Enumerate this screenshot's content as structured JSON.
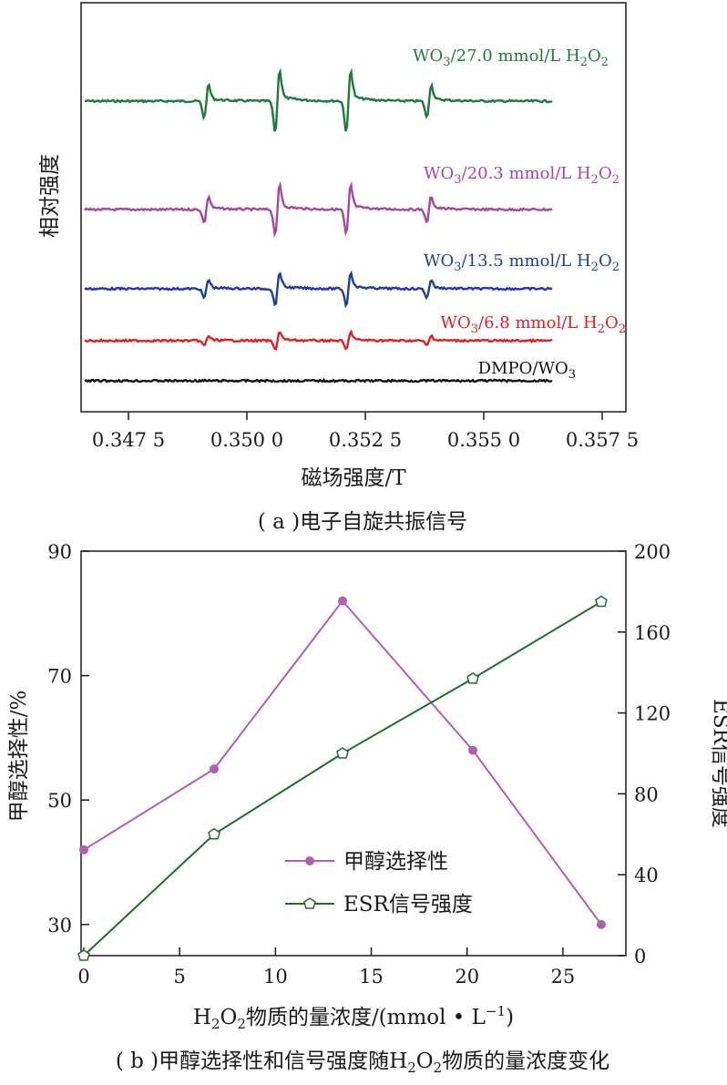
{
  "panel_a": {
    "caption": "( a )电子自旋共振信号",
    "chart_data": {
      "type": "line",
      "xlabel": "磁场强度/T",
      "ylabel": "相对强度",
      "xlim": [
        0.3465,
        0.358
      ],
      "x_ticks": [
        0.3475,
        0.35,
        0.3525,
        0.355,
        0.3575
      ],
      "x_tick_labels": [
        "0.347 5",
        "0.350 0",
        "0.352 5",
        "0.355 0",
        "0.357 5"
      ],
      "grid": false,
      "dmpo_oh_peak_positions": [
        0.3492,
        0.3507,
        0.3522,
        0.3539
      ],
      "series": [
        {
          "name": "WO₃/27.0 mmol/L H₂O₂",
          "color": "#1e7a3a",
          "amplitudes": [
            1.0,
            1.9,
            1.9,
            1.0
          ]
        },
        {
          "name": "WO₃/20.3 mmol/L H₂O₂",
          "color": "#a6479e",
          "amplitudes": [
            0.8,
            1.5,
            1.5,
            0.8
          ]
        },
        {
          "name": "WO₃/13.5 mmol/L H₂O₂",
          "color": "#1f3d9c",
          "amplitudes": [
            0.55,
            1.0,
            1.0,
            0.55
          ]
        },
        {
          "name": "WO₃/6.8 mmol/L H₂O₂",
          "color": "#e02020",
          "amplitudes": [
            0.3,
            0.55,
            0.55,
            0.3
          ]
        },
        {
          "name": "DMPO/WO₃",
          "color": "#111111",
          "amplitudes": [
            0,
            0,
            0,
            0
          ]
        }
      ]
    }
  },
  "panel_b": {
    "caption_prefix": "( b )甲醇选择性和信号强度随H",
    "caption_suffix": "物质的量浓度变化",
    "chart_data": {
      "type": "line",
      "x": [
        0,
        6.8,
        13.5,
        20.3,
        27.0
      ],
      "xlim": [
        0,
        28
      ],
      "x_ticks": [
        0,
        5,
        10,
        15,
        20,
        25
      ],
      "xlabel_prefix": "H",
      "xlabel_suffix": "物质的量浓度/(mmol • L",
      "ylabel_left": "甲醇选择性/%",
      "ylabel_right": "ESR信号强度",
      "ylim_left": [
        25,
        90
      ],
      "ylim_right": [
        0,
        200
      ],
      "left_ticks": [
        30,
        50,
        70,
        90
      ],
      "right_ticks": [
        0,
        40,
        80,
        120,
        160,
        200
      ],
      "legend_position": "lower-center",
      "series": [
        {
          "name": "甲醇选择性",
          "axis": "left",
          "color": "#b05fb0",
          "marker": "circle",
          "values": [
            42,
            55,
            82,
            58,
            30
          ]
        },
        {
          "name": "ESR信号强度",
          "axis": "right",
          "color": "#1e6b30",
          "marker": "pentagon",
          "values": [
            0,
            60,
            100,
            137,
            175
          ]
        }
      ]
    }
  }
}
